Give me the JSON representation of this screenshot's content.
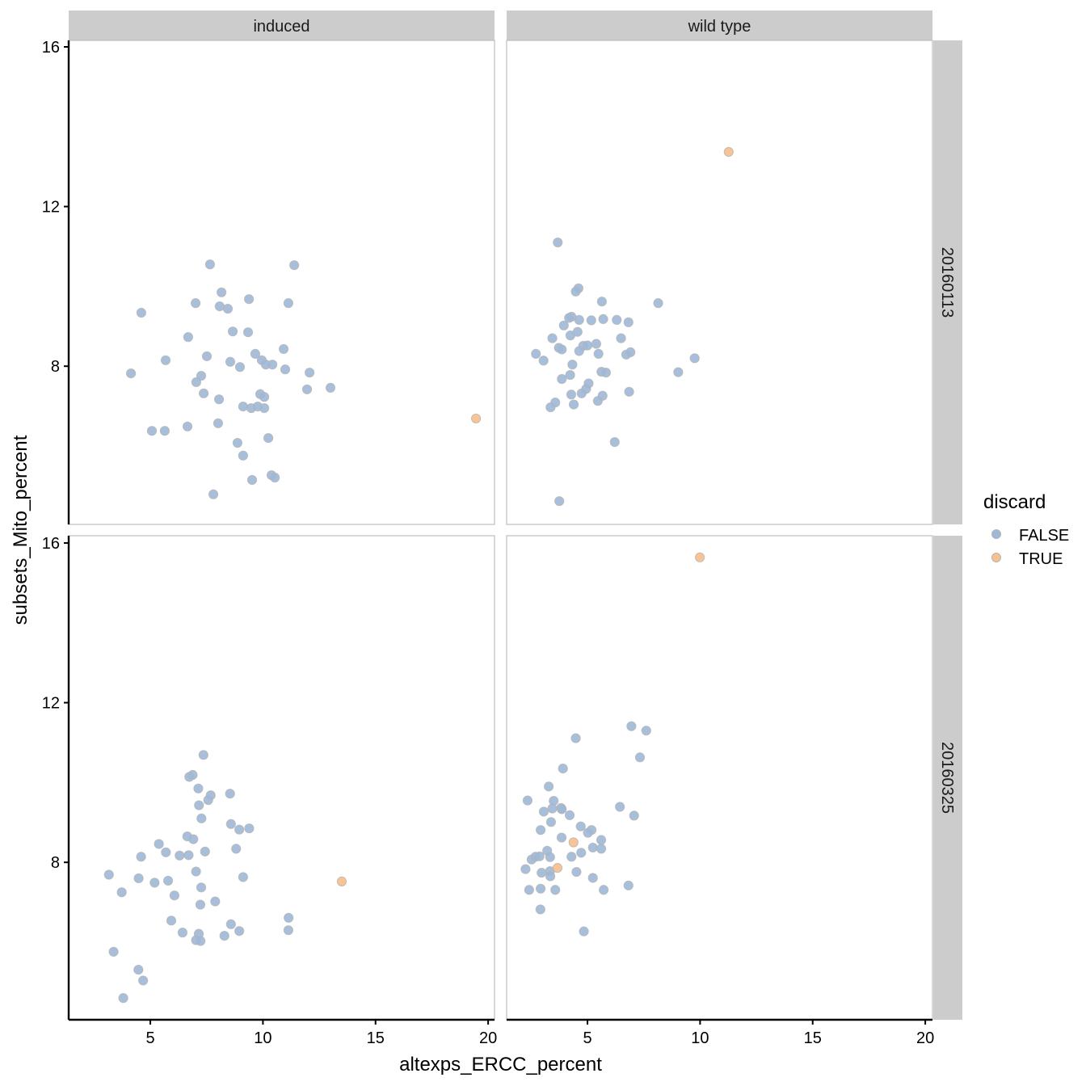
{
  "chart_data": {
    "type": "scatter",
    "facet_layout": "grid",
    "xlabel": "altexps_ERCC_percent",
    "ylabel": "subsets_Mito_percent",
    "xlim": [
      1.5,
      20.3
    ],
    "ylim": [
      4.2,
      16.2
    ],
    "x_ticks": [
      5,
      10,
      15,
      20
    ],
    "x_tick_labels": [
      "5",
      "10",
      "15",
      "20"
    ],
    "y_ticks": [
      8,
      12,
      16
    ],
    "y_tick_labels": [
      "8",
      "12",
      "16"
    ],
    "grid": false,
    "column_facets": [
      "induced",
      "wild type"
    ],
    "row_facets": [
      "20160113",
      "20160325"
    ],
    "legend": {
      "title": "discard",
      "position": "right",
      "entries": [
        {
          "label": "FALSE",
          "color": "#9fb8d8"
        },
        {
          "label": "TRUE",
          "color": "#f8c08f"
        }
      ]
    },
    "panels": [
      {
        "column": "induced",
        "row": "20160113",
        "false_points": [
          [
            7.65,
            10.55
          ],
          [
            11.39,
            10.53
          ],
          [
            8.16,
            9.85
          ],
          [
            4.6,
            9.34
          ],
          [
            7.01,
            9.58
          ],
          [
            8.08,
            9.5
          ],
          [
            8.44,
            9.44
          ],
          [
            9.38,
            9.68
          ],
          [
            11.13,
            9.58
          ],
          [
            6.68,
            8.73
          ],
          [
            8.66,
            8.87
          ],
          [
            9.34,
            8.85
          ],
          [
            9.66,
            8.31
          ],
          [
            10.92,
            8.43
          ],
          [
            4.14,
            7.82
          ],
          [
            5.68,
            8.15
          ],
          [
            7.51,
            8.25
          ],
          [
            8.55,
            8.11
          ],
          [
            8.98,
            7.98
          ],
          [
            9.95,
            8.15
          ],
          [
            10.13,
            8.04
          ],
          [
            10.42,
            8.04
          ],
          [
            10.99,
            7.92
          ],
          [
            12.07,
            7.84
          ],
          [
            7.26,
            7.76
          ],
          [
            7.04,
            7.6
          ],
          [
            7.37,
            7.32
          ],
          [
            8.05,
            7.17
          ],
          [
            9.88,
            7.3
          ],
          [
            10.06,
            7.23
          ],
          [
            11.96,
            7.42
          ],
          [
            13.0,
            7.46
          ],
          [
            9.12,
            6.99
          ],
          [
            9.48,
            6.95
          ],
          [
            9.77,
            6.99
          ],
          [
            10.06,
            6.95
          ],
          [
            5.07,
            6.38
          ],
          [
            5.64,
            6.38
          ],
          [
            6.65,
            6.49
          ],
          [
            8.01,
            6.57
          ],
          [
            8.87,
            6.08
          ],
          [
            10.24,
            6.2
          ],
          [
            9.12,
            5.76
          ],
          [
            10.38,
            5.27
          ],
          [
            10.53,
            5.21
          ],
          [
            9.52,
            5.15
          ],
          [
            7.8,
            4.79
          ]
        ],
        "true_points": [
          [
            19.46,
            6.69
          ]
        ]
      },
      {
        "column": "wild type",
        "row": "20160113",
        "false_points": [
          [
            3.68,
            11.1
          ],
          [
            4.6,
            9.95
          ],
          [
            4.48,
            9.87
          ],
          [
            5.64,
            9.62
          ],
          [
            8.14,
            9.58
          ],
          [
            4.29,
            9.24
          ],
          [
            4.18,
            9.21
          ],
          [
            4.63,
            9.16
          ],
          [
            5.17,
            9.15
          ],
          [
            5.7,
            9.18
          ],
          [
            6.3,
            9.16
          ],
          [
            6.82,
            9.1
          ],
          [
            3.95,
            9.02
          ],
          [
            4.24,
            8.77
          ],
          [
            4.56,
            8.86
          ],
          [
            6.49,
            8.7
          ],
          [
            3.44,
            8.7
          ],
          [
            3.73,
            8.46
          ],
          [
            3.86,
            8.42
          ],
          [
            4.81,
            8.51
          ],
          [
            5.0,
            8.52
          ],
          [
            5.39,
            8.56
          ],
          [
            2.71,
            8.31
          ],
          [
            3.05,
            8.14
          ],
          [
            4.63,
            8.38
          ],
          [
            5.49,
            8.31
          ],
          [
            6.72,
            8.29
          ],
          [
            6.91,
            8.35
          ],
          [
            9.76,
            8.2
          ],
          [
            4.33,
            8.04
          ],
          [
            9.03,
            7.85
          ],
          [
            5.62,
            7.86
          ],
          [
            5.82,
            7.84
          ],
          [
            4.23,
            7.78
          ],
          [
            3.86,
            7.68
          ],
          [
            5.05,
            7.57
          ],
          [
            4.94,
            7.43
          ],
          [
            4.74,
            7.32
          ],
          [
            4.28,
            7.29
          ],
          [
            5.67,
            7.26
          ],
          [
            6.85,
            7.36
          ],
          [
            5.46,
            7.13
          ],
          [
            3.57,
            7.09
          ],
          [
            4.39,
            7.04
          ],
          [
            3.36,
            6.97
          ],
          [
            6.21,
            6.1
          ],
          [
            3.75,
            4.62
          ]
        ],
        "true_points": [
          [
            11.27,
            13.37
          ]
        ]
      },
      {
        "column": "induced",
        "row": "20160325",
        "false_points": [
          [
            7.36,
            10.69
          ],
          [
            6.88,
            10.19
          ],
          [
            6.73,
            10.14
          ],
          [
            7.13,
            9.85
          ],
          [
            7.68,
            9.68
          ],
          [
            7.57,
            9.56
          ],
          [
            8.54,
            9.72
          ],
          [
            7.16,
            9.43
          ],
          [
            7.27,
            9.1
          ],
          [
            8.58,
            8.96
          ],
          [
            8.95,
            8.82
          ],
          [
            9.39,
            8.85
          ],
          [
            6.64,
            8.65
          ],
          [
            6.91,
            8.58
          ],
          [
            5.38,
            8.46
          ],
          [
            8.81,
            8.34
          ],
          [
            5.69,
            8.25
          ],
          [
            6.3,
            8.17
          ],
          [
            6.7,
            8.18
          ],
          [
            7.43,
            8.27
          ],
          [
            4.59,
            8.14
          ],
          [
            3.16,
            7.69
          ],
          [
            4.48,
            7.6
          ],
          [
            5.19,
            7.49
          ],
          [
            5.79,
            7.54
          ],
          [
            7.03,
            7.77
          ],
          [
            9.12,
            7.63
          ],
          [
            3.73,
            7.25
          ],
          [
            6.07,
            7.17
          ],
          [
            7.26,
            7.37
          ],
          [
            7.22,
            6.94
          ],
          [
            7.88,
            7.02
          ],
          [
            5.93,
            6.54
          ],
          [
            8.58,
            6.45
          ],
          [
            8.95,
            6.28
          ],
          [
            6.43,
            6.24
          ],
          [
            7.15,
            6.21
          ],
          [
            7.03,
            6.05
          ],
          [
            7.23,
            6.03
          ],
          [
            8.29,
            6.16
          ],
          [
            3.37,
            5.76
          ],
          [
            4.47,
            5.31
          ],
          [
            4.68,
            5.04
          ],
          [
            3.8,
            4.6
          ],
          [
            11.14,
            6.61
          ],
          [
            11.13,
            6.3
          ]
        ],
        "true_points": [
          [
            13.5,
            7.52
          ]
        ]
      },
      {
        "column": "wild type",
        "row": "20160325",
        "false_points": [
          [
            6.95,
            11.41
          ],
          [
            7.61,
            11.3
          ],
          [
            4.48,
            11.11
          ],
          [
            7.33,
            10.63
          ],
          [
            3.91,
            10.35
          ],
          [
            3.28,
            9.9
          ],
          [
            2.34,
            9.55
          ],
          [
            3.5,
            9.54
          ],
          [
            6.44,
            9.39
          ],
          [
            3.44,
            9.35
          ],
          [
            3.83,
            9.36
          ],
          [
            3.86,
            9.33
          ],
          [
            3.06,
            9.27
          ],
          [
            4.21,
            9.18
          ],
          [
            7.07,
            9.17
          ],
          [
            3.38,
            9.01
          ],
          [
            2.92,
            8.81
          ],
          [
            4.7,
            8.9
          ],
          [
            5.18,
            8.81
          ],
          [
            5.02,
            8.74
          ],
          [
            3.85,
            8.62
          ],
          [
            5.61,
            8.56
          ],
          [
            5.24,
            8.37
          ],
          [
            5.61,
            8.34
          ],
          [
            4.29,
            8.14
          ],
          [
            4.72,
            8.24
          ],
          [
            3.21,
            8.29
          ],
          [
            2.52,
            8.07
          ],
          [
            2.69,
            8.14
          ],
          [
            2.87,
            8.15
          ],
          [
            3.34,
            8.13
          ],
          [
            2.25,
            7.83
          ],
          [
            2.96,
            7.74
          ],
          [
            3.34,
            7.78
          ],
          [
            3.35,
            7.65
          ],
          [
            4.51,
            7.76
          ],
          [
            5.24,
            7.61
          ],
          [
            6.82,
            7.42
          ],
          [
            2.41,
            7.31
          ],
          [
            2.92,
            7.34
          ],
          [
            3.57,
            7.31
          ],
          [
            5.72,
            7.31
          ],
          [
            2.91,
            6.82
          ],
          [
            4.84,
            6.27
          ]
        ],
        "true_points": [
          [
            4.38,
            8.5
          ],
          [
            3.67,
            7.86
          ],
          [
            9.99,
            15.64
          ]
        ]
      }
    ],
    "colors": {
      "false_fill": "#9fb8d8",
      "true_fill": "#f8c08f",
      "point_stroke": "#b4b4b4",
      "strip_fill": "#cccccc",
      "panel_border": "#bdbdbd"
    }
  }
}
